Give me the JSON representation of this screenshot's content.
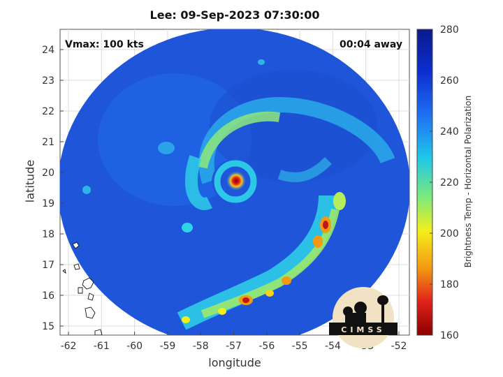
{
  "title": "Lee: 09-Sep-2023 07:30:00",
  "xlabel": "longitude",
  "ylabel": "latitude",
  "annotations": {
    "vmax": "Vmax: 100 kts",
    "time_away": "00:04 away"
  },
  "x_ticks": [
    "-62",
    "-61",
    "-60",
    "-59",
    "-58",
    "-57",
    "-56",
    "-55",
    "-54",
    "-53",
    "-52"
  ],
  "y_ticks": [
    "24",
    "23",
    "22",
    "21",
    "20",
    "19",
    "18",
    "17",
    "16",
    "15"
  ],
  "colorbar": {
    "label": "Brightness Temp - Horizontal Polarization",
    "ticks": [
      "280",
      "260",
      "240",
      "220",
      "200",
      "180",
      "160"
    ],
    "range": [
      160,
      280
    ]
  },
  "logo_text": "CIMSS",
  "colors": {
    "cold": "#8b0000",
    "warm": "#0a1a8c",
    "background_sst": "#1f55d9"
  }
}
